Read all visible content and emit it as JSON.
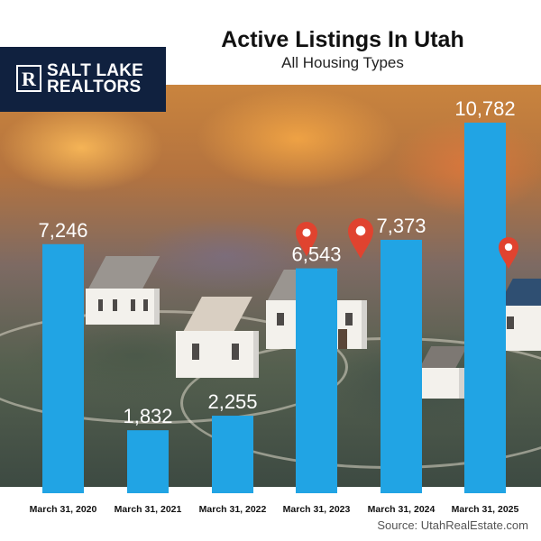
{
  "brand": {
    "name_line1": "SALT LAKE",
    "name_line2": "REALTORS",
    "mark": "R"
  },
  "footer": {
    "source": "Source: UtahRealEstate.com"
  },
  "chart_data": {
    "type": "bar",
    "title": "Active Listings In Utah",
    "subtitle": "All Housing Types",
    "categories": [
      "March 31, 2020",
      "March 31, 2021",
      "March 31, 2022",
      "March 31, 2023",
      "March 31, 2024",
      "March 31, 2025"
    ],
    "values": [
      7246,
      1832,
      2255,
      6543,
      7373,
      10782
    ],
    "value_labels": [
      "7,246",
      "1,832",
      "2,255",
      "6,543",
      "7,373",
      "10,782"
    ],
    "ylim": [
      0,
      11000
    ],
    "grid": false,
    "bar_color": "#21a4e4"
  }
}
